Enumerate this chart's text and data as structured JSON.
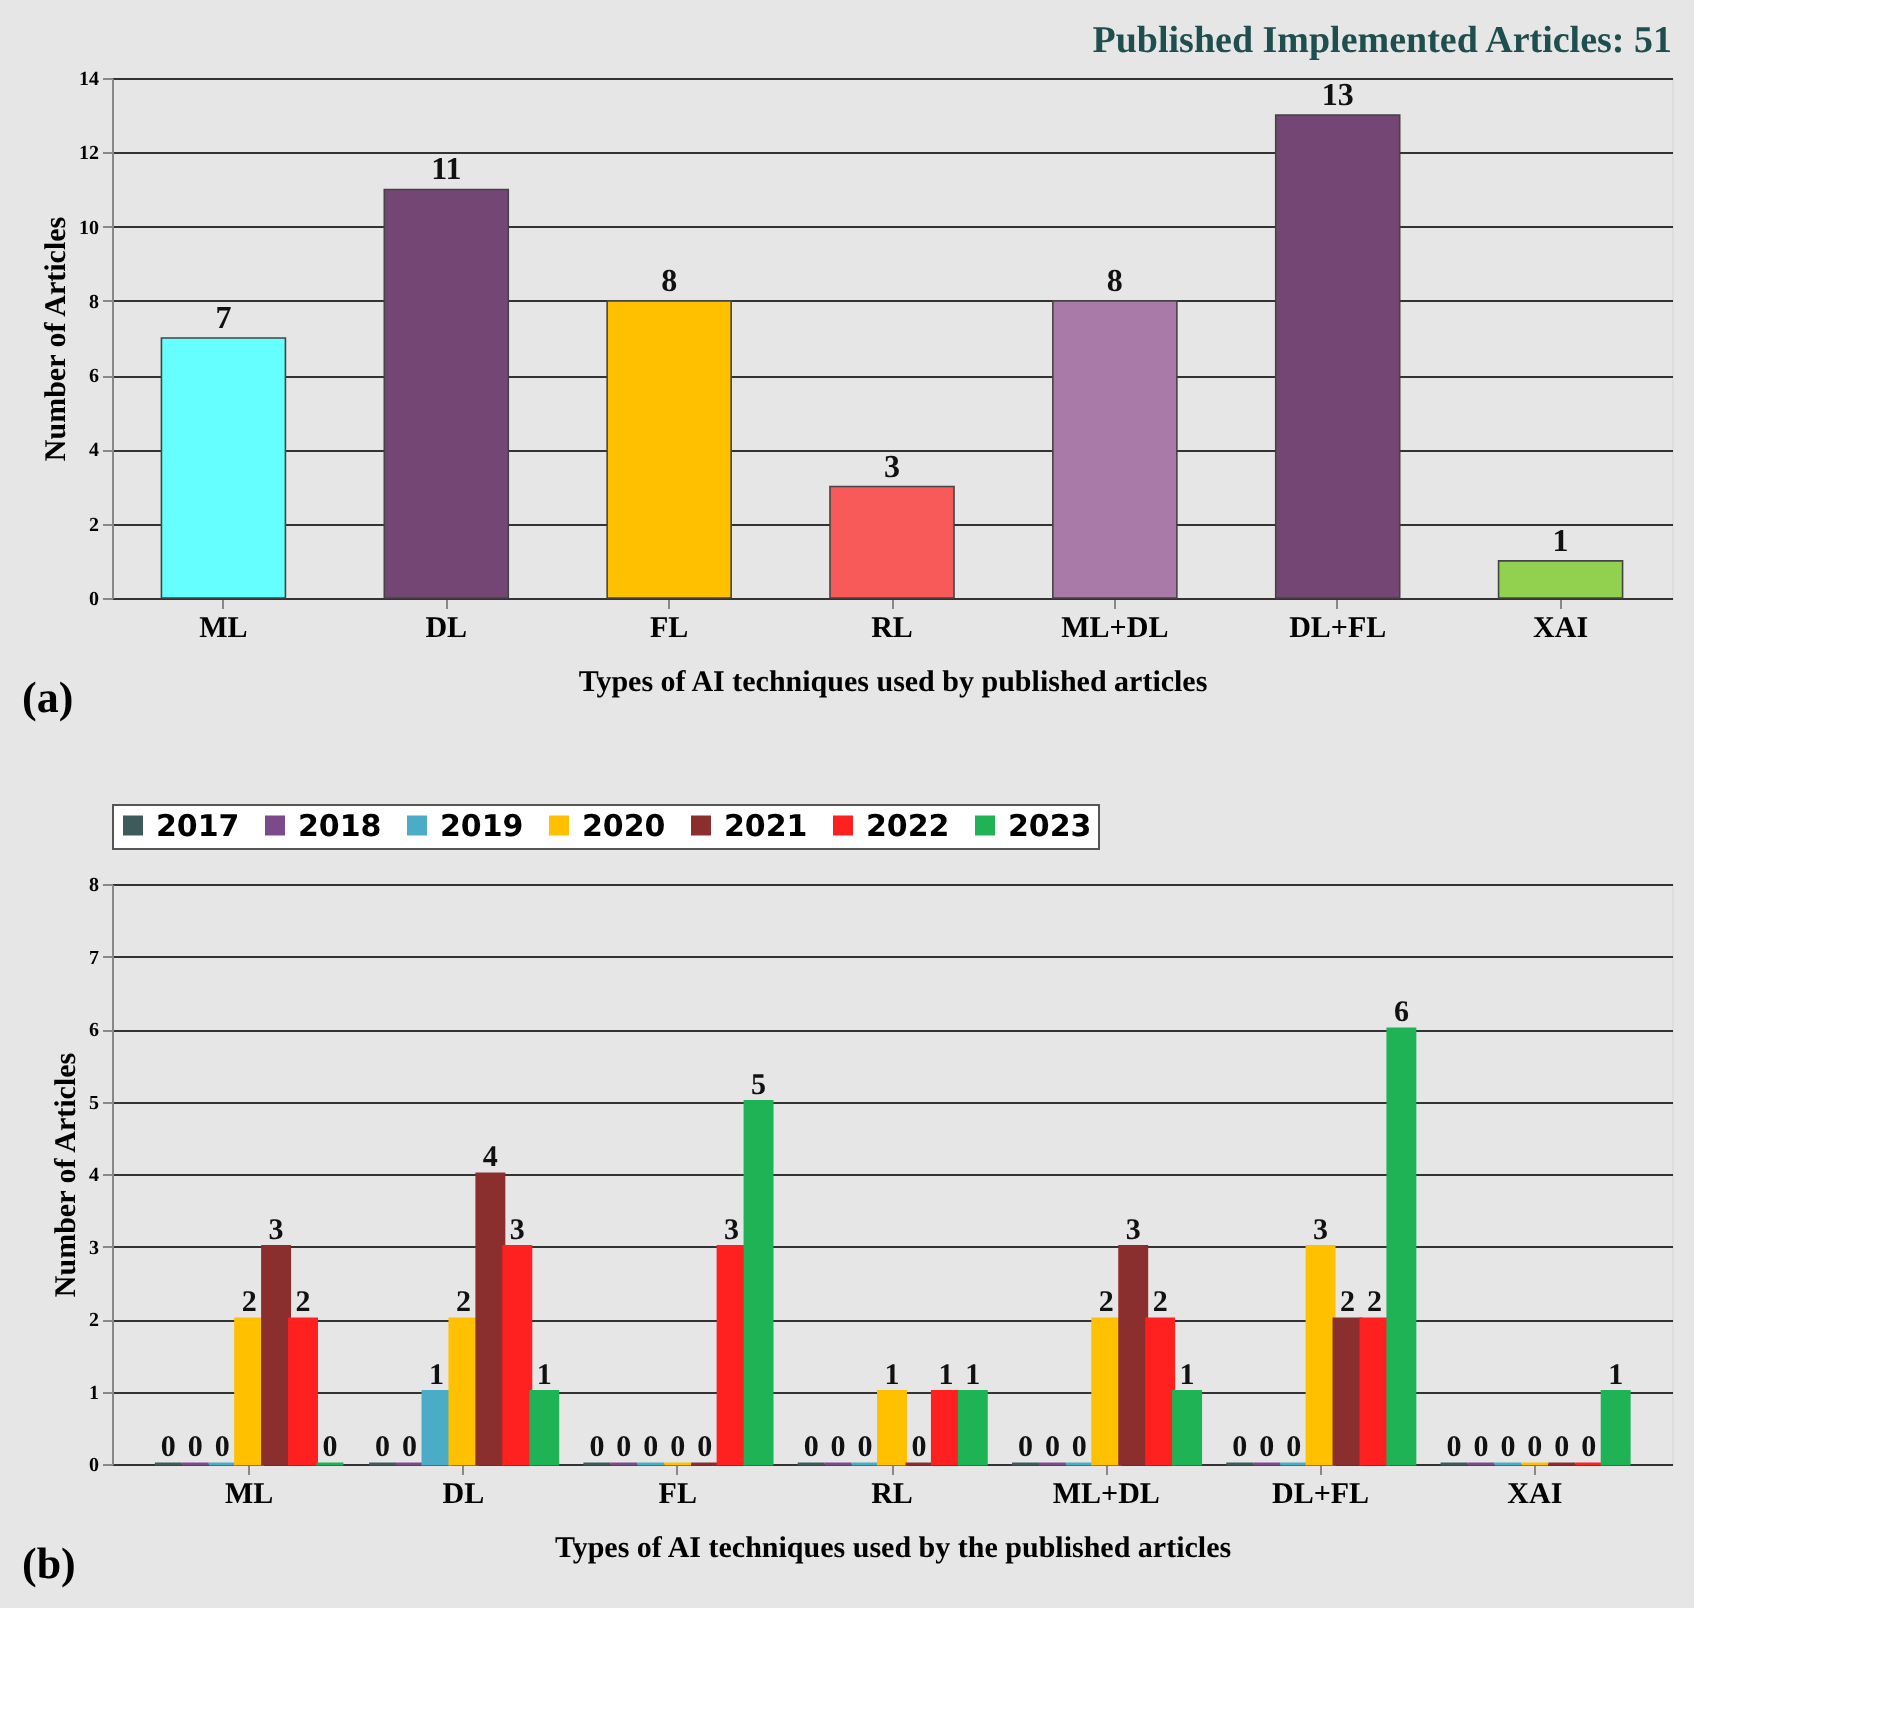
{
  "chart_data": [
    {
      "type": "bar",
      "title": "Published Implemented Articles: 51",
      "xlabel": "Types of AI techniques used by published articles",
      "ylabel": "Number of Articles",
      "annotations": [
        "(a)"
      ],
      "categories": [
        "ML",
        "DL",
        "FL",
        "RL",
        "ML+DL",
        "DL+FL",
        "XAI"
      ],
      "values": [
        7,
        11,
        8,
        3,
        8,
        13,
        1
      ],
      "colors": [
        "#66ffff",
        "#744674",
        "#ffc000",
        "#f85a5a",
        "#a97aa8",
        "#744674",
        "#92d050"
      ],
      "ylim": [
        0,
        14
      ],
      "yticks": [
        0,
        2,
        4,
        6,
        8,
        10,
        12,
        14
      ],
      "grid": "y",
      "data_labels": true
    },
    {
      "type": "bar",
      "xlabel": "Types of AI techniques used by the published articles",
      "ylabel": "Number of Articles",
      "annotations": [
        "(b)"
      ],
      "categories": [
        "ML",
        "DL",
        "FL",
        "RL",
        "ML+DL",
        "DL+FL",
        "XAI"
      ],
      "series": [
        {
          "name": "2017",
          "color": "#3f5a5a",
          "values": [
            0,
            0,
            0,
            0,
            0,
            0,
            0
          ]
        },
        {
          "name": "2018",
          "color": "#7a4a8a",
          "values": [
            0,
            0,
            0,
            0,
            0,
            0,
            0
          ]
        },
        {
          "name": "2019",
          "color": "#4bacc6",
          "values": [
            0,
            1,
            0,
            0,
            0,
            0,
            0
          ]
        },
        {
          "name": "2020",
          "color": "#ffc000",
          "values": [
            2,
            2,
            0,
            1,
            2,
            3,
            0
          ]
        },
        {
          "name": "2021",
          "color": "#8b2e2e",
          "values": [
            3,
            4,
            0,
            0,
            3,
            2,
            0
          ]
        },
        {
          "name": "2022",
          "color": "#ff2020",
          "values": [
            2,
            3,
            3,
            1,
            2,
            2,
            0
          ]
        },
        {
          "name": "2023",
          "color": "#1fb356",
          "values": [
            0,
            1,
            5,
            1,
            1,
            6,
            1
          ]
        }
      ],
      "ylim": [
        0,
        8
      ],
      "yticks": [
        0,
        1,
        2,
        3,
        4,
        5,
        6,
        7,
        8
      ],
      "grid": "y",
      "legend": "top",
      "data_labels": true
    }
  ]
}
